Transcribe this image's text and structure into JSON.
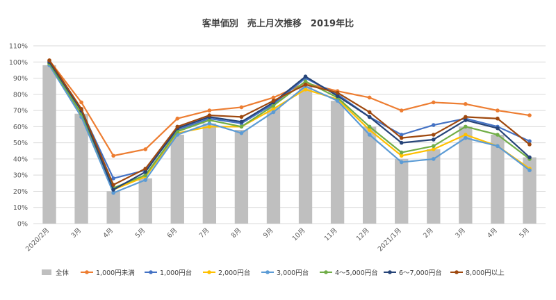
{
  "chart_data": {
    "type": "line",
    "title": "客単価別　売上月次推移　2019年比",
    "categories": [
      "2020/2月",
      "3月",
      "4月",
      "5月",
      "6月",
      "7月",
      "8月",
      "9月",
      "10月",
      "11月",
      "12月",
      "2021/1月",
      "2月",
      "3月",
      "4月",
      "5月"
    ],
    "y_ticks": [
      "0%",
      "10%",
      "20%",
      "30%",
      "40%",
      "50%",
      "60%",
      "70%",
      "80%",
      "90%",
      "100%",
      "110%"
    ],
    "ylim": [
      0,
      110
    ],
    "grid": true,
    "legend_position": "bottom",
    "series": [
      {
        "name": "全体",
        "kind": "bar",
        "color": "#bfbfbf",
        "values": [
          98,
          68,
          20,
          28,
          55,
          62,
          58,
          72,
          85,
          76,
          60,
          40,
          46,
          60,
          55,
          41
        ]
      },
      {
        "name": "1,000円未満",
        "kind": "line",
        "color": "#ed7d31",
        "values": [
          101,
          75,
          42,
          46,
          65,
          70,
          72,
          78,
          87,
          82,
          78,
          70,
          75,
          74,
          70,
          67
        ]
      },
      {
        "name": "1,000円台",
        "kind": "line",
        "color": "#4472c4",
        "values": [
          100,
          70,
          28,
          33,
          58,
          65,
          62,
          74,
          90,
          80,
          66,
          55,
          61,
          65,
          60,
          51
        ]
      },
      {
        "name": "2,000円台",
        "kind": "line",
        "color": "#ffc000",
        "values": [
          99,
          67,
          21,
          29,
          56,
          60,
          60,
          71,
          83,
          77,
          58,
          42,
          46,
          55,
          48,
          34
        ]
      },
      {
        "name": "3,000円台",
        "kind": "line",
        "color": "#5b9bd5",
        "values": [
          98,
          66,
          19,
          27,
          55,
          62,
          56,
          69,
          85,
          76,
          55,
          38,
          40,
          53,
          48,
          33
        ]
      },
      {
        "name": "4～5,000円台",
        "kind": "line",
        "color": "#70ad47",
        "values": [
          99,
          68,
          22,
          30,
          57,
          64,
          60,
          73,
          88,
          78,
          60,
          44,
          48,
          60,
          55,
          40
        ]
      },
      {
        "name": "6～7,000円台",
        "kind": "line",
        "color": "#264478",
        "values": [
          100,
          70,
          21,
          32,
          59,
          66,
          63,
          75,
          91,
          79,
          66,
          50,
          52,
          64,
          59,
          41
        ]
      },
      {
        "name": "8,000円以上",
        "kind": "line",
        "color": "#9e480e",
        "values": [
          101,
          71,
          24,
          34,
          60,
          67,
          66,
          76,
          86,
          81,
          69,
          53,
          55,
          66,
          65,
          49
        ]
      }
    ]
  }
}
